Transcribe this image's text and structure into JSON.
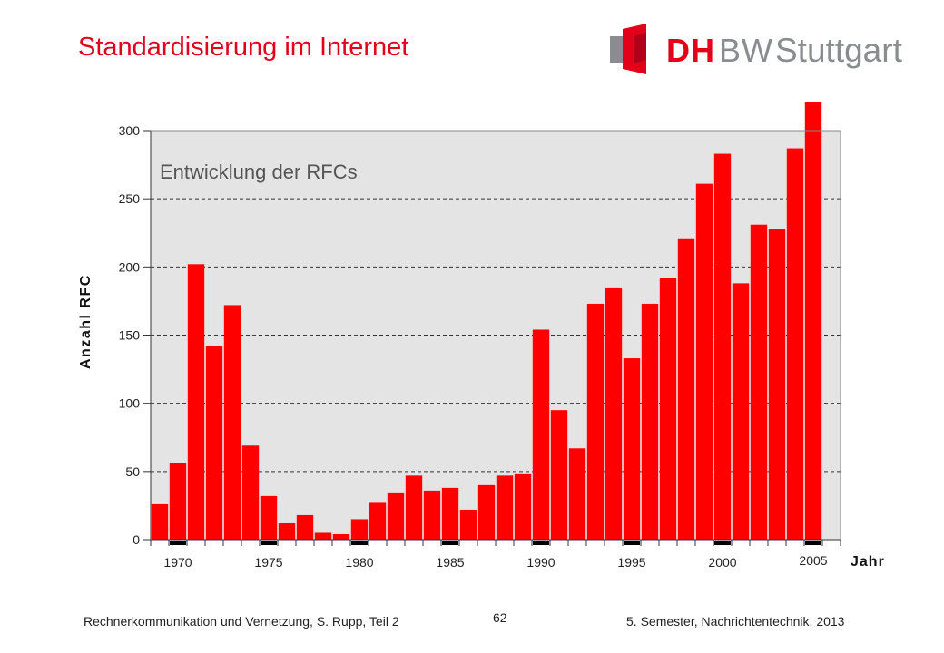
{
  "slide": {
    "title": "Standardisierung im Internet",
    "footer_left": "Rechnerkommunikation und Vernetzung, S. Rupp, Teil 2",
    "page_number": "62",
    "footer_right": "5. Semester, Nachrichtentechnik, 2013"
  },
  "logo": {
    "dh": "DH",
    "bw": "BW",
    "city": "Stuttgart",
    "colors": {
      "red": "#e2001a",
      "grey": "#8a8d8f"
    }
  },
  "chart_data": {
    "type": "bar",
    "title": "Entwicklung der RFCs",
    "ylabel": "Anzahl RFC",
    "xlabel": "Jahr",
    "ylim": [
      0,
      300
    ],
    "yticks": [
      "0",
      "50",
      "100",
      "150",
      "200",
      "250",
      "300"
    ],
    "x_tick_labels": [
      "1970",
      "1975",
      "1980",
      "1985",
      "1990",
      "1995",
      "2000",
      "2005"
    ],
    "grid": "horizontal dashed",
    "bar_color": "#ff0000",
    "plot_background": "#e4e4e4",
    "categories": [
      "1969",
      "1970",
      "1971",
      "1972",
      "1973",
      "1974",
      "1975",
      "1976",
      "1977",
      "1978",
      "1979",
      "1980",
      "1981",
      "1982",
      "1983",
      "1984",
      "1985",
      "1986",
      "1987",
      "1988",
      "1989",
      "1990",
      "1991",
      "1992",
      "1993",
      "1994",
      "1995",
      "1996",
      "1997",
      "1998",
      "1999",
      "2000",
      "2001",
      "2002",
      "2003",
      "2004",
      "2005",
      "2006"
    ],
    "values": [
      26,
      56,
      202,
      142,
      172,
      69,
      32,
      12,
      18,
      5,
      4,
      15,
      27,
      34,
      47,
      36,
      38,
      22,
      40,
      47,
      48,
      154,
      95,
      67,
      173,
      185,
      133,
      173,
      192,
      221,
      261,
      283,
      188,
      231,
      228,
      287,
      321,
      0
    ]
  }
}
